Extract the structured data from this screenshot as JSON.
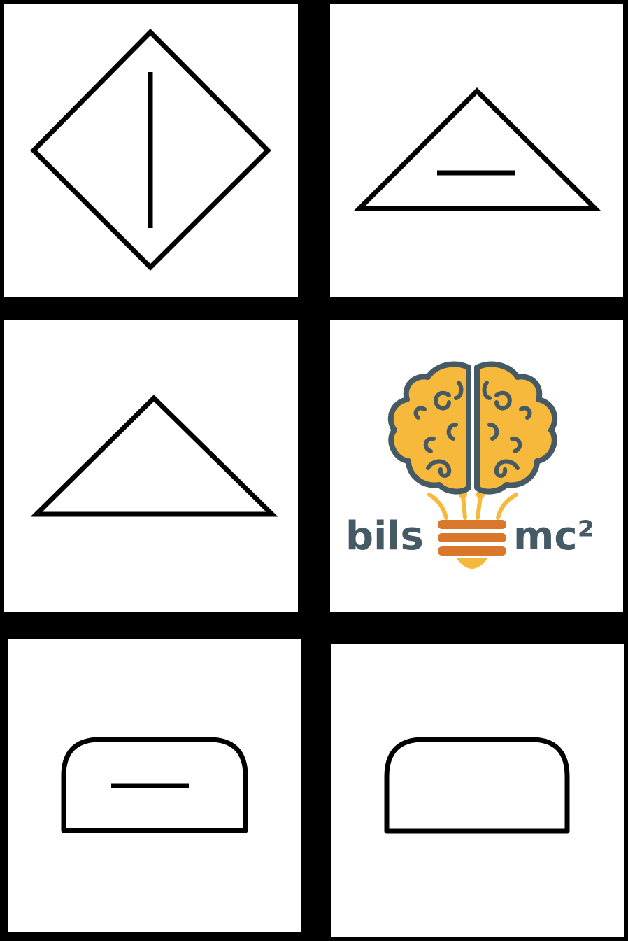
{
  "cards": [
    {
      "id": "diamond-with-vertical-line",
      "shape": "diamond",
      "mark": "vertical-line"
    },
    {
      "id": "triangle-with-horizontal-line",
      "shape": "triangle",
      "mark": "horizontal-line"
    },
    {
      "id": "triangle-plain",
      "shape": "triangle",
      "mark": "none"
    },
    {
      "id": "logo",
      "shape": "logo",
      "mark": "none"
    },
    {
      "id": "arch-with-horizontal-line",
      "shape": "rounded-arch",
      "mark": "horizontal-line"
    },
    {
      "id": "arch-plain",
      "shape": "rounded-arch",
      "mark": "none"
    }
  ],
  "logo": {
    "text_left": "bils",
    "text_right": "mc²",
    "colors": {
      "brain_fill": "#F6B93B",
      "brain_outline": "#455A64",
      "bulb_base": "#D9772A",
      "bulb_glow": "#F6B93B",
      "text": "#455A64"
    }
  },
  "colors": {
    "background": "#000000",
    "card": "#FFFFFF",
    "stroke": "#000000"
  }
}
